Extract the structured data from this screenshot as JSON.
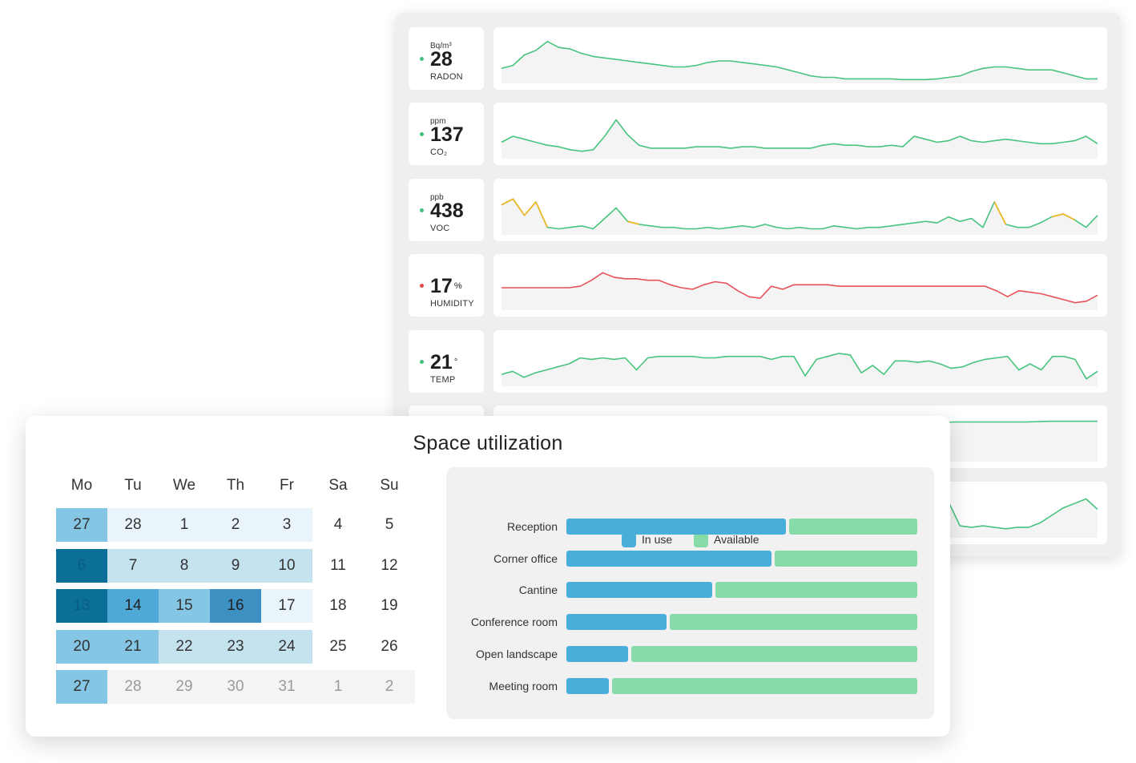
{
  "sensors": [
    {
      "unit": "Bq/m³",
      "value": "28",
      "value_sup": "",
      "label": "RADON",
      "dot_color": "#3ec27a",
      "line_color": "#48c47f",
      "series": [
        20,
        24,
        38,
        44,
        56,
        48,
        46,
        40,
        36,
        34,
        32,
        30,
        28,
        26,
        24,
        22,
        22,
        24,
        28,
        30,
        30,
        28,
        26,
        24,
        22,
        18,
        14,
        10,
        8,
        8,
        6,
        6,
        6,
        6,
        6,
        5,
        5,
        5,
        6,
        8,
        10,
        16,
        20,
        22,
        22,
        20,
        18,
        18,
        18,
        14,
        10,
        6,
        6
      ]
    },
    {
      "unit": "ppm",
      "value": "137",
      "value_sup": "",
      "label": "CO₂",
      "dot_color": "#3ec27a",
      "line_color": "#48c47f",
      "series": [
        22,
        30,
        26,
        22,
        18,
        16,
        12,
        10,
        12,
        30,
        52,
        32,
        18,
        14,
        14,
        14,
        14,
        16,
        16,
        16,
        14,
        16,
        16,
        14,
        14,
        14,
        14,
        14,
        18,
        20,
        18,
        18,
        16,
        16,
        18,
        16,
        30,
        26,
        22,
        24,
        30,
        24,
        22,
        24,
        26,
        24,
        22,
        20,
        20,
        22,
        24,
        30,
        20
      ]
    },
    {
      "unit": "ppb",
      "value": "438",
      "value_sup": "",
      "label": "VOC",
      "dot_color": "#3ec27a",
      "line_color": "#48c47f",
      "warn_color": "#f0b92c",
      "series": [
        40,
        48,
        26,
        44,
        10,
        8,
        10,
        12,
        8,
        22,
        36,
        18,
        14,
        12,
        10,
        10,
        8,
        8,
        10,
        8,
        10,
        12,
        10,
        14,
        10,
        8,
        10,
        8,
        8,
        12,
        10,
        8,
        10,
        10,
        12,
        14,
        16,
        18,
        16,
        24,
        18,
        22,
        10,
        44,
        14,
        10,
        10,
        16,
        24,
        28,
        20,
        10,
        26
      ],
      "warn": [
        0,
        1,
        2,
        3,
        11,
        43,
        48,
        49
      ]
    },
    {
      "unit": "",
      "value": "17",
      "value_sup": "%",
      "label": "HUMIDITY",
      "dot_color": "#e04a4a",
      "line_color": "#e8525b",
      "series": [
        30,
        30,
        30,
        30,
        30,
        30,
        30,
        32,
        40,
        50,
        44,
        42,
        42,
        40,
        40,
        34,
        30,
        28,
        34,
        38,
        36,
        26,
        18,
        16,
        32,
        28,
        34,
        34,
        34,
        34,
        32,
        32,
        32,
        32,
        32,
        32,
        32,
        32,
        32,
        32,
        32,
        32,
        32,
        32,
        26,
        18,
        26,
        24,
        22,
        18,
        14,
        10,
        12,
        20
      ]
    },
    {
      "unit": "",
      "value": "21",
      "value_sup": "°",
      "label": "TEMP",
      "dot_color": "#3ec27a",
      "line_color": "#48c47f",
      "series": [
        16,
        20,
        12,
        18,
        22,
        26,
        30,
        38,
        36,
        38,
        36,
        38,
        22,
        38,
        40,
        40,
        40,
        40,
        38,
        38,
        40,
        40,
        40,
        40,
        36,
        40,
        40,
        14,
        36,
        40,
        44,
        42,
        18,
        28,
        16,
        34,
        34,
        32,
        34,
        30,
        24,
        26,
        32,
        36,
        38,
        40,
        22,
        30,
        22,
        40,
        40,
        36,
        10,
        20
      ]
    },
    {
      "unit": "",
      "value": "",
      "value_sup": "",
      "label": "",
      "dot_color": "#3ec27a",
      "line_color": "#48c47f",
      "series": [
        20,
        24,
        30,
        34,
        38,
        40,
        42,
        44,
        46,
        47,
        48,
        49,
        50,
        50,
        51,
        51,
        52,
        52,
        52,
        53,
        53,
        53,
        53,
        54,
        54,
        54
      ]
    },
    {
      "unit": "",
      "value": "",
      "value_sup": "",
      "label": "",
      "dot_color": "#3ec27a",
      "line_color": "#48c47f",
      "series": [
        14,
        12,
        14,
        16,
        18,
        14,
        12,
        14,
        16,
        14,
        12,
        14,
        18,
        14,
        12,
        14,
        16,
        18,
        14,
        12,
        14,
        16,
        14,
        12,
        14,
        16,
        20,
        18,
        16,
        14,
        12,
        14,
        18,
        14,
        48,
        14,
        50,
        16,
        16,
        48,
        16,
        14,
        16,
        14,
        12,
        14,
        14,
        20,
        30,
        40,
        46,
        52,
        38
      ]
    }
  ],
  "utilization": {
    "title": "Space utilization",
    "weekdays": [
      "Mo",
      "Tu",
      "We",
      "Th",
      "Fr",
      "Sa",
      "Su"
    ],
    "weeks": [
      [
        {
          "d": "27",
          "l": 2
        },
        {
          "d": "28",
          "l": 0
        },
        {
          "d": "1",
          "l": 0
        },
        {
          "d": "2",
          "l": 0
        },
        {
          "d": "3",
          "l": 0
        },
        {
          "d": "4",
          "l": -1
        },
        {
          "d": "5",
          "l": -1
        }
      ],
      [
        {
          "d": "6",
          "l": 5
        },
        {
          "d": "7",
          "l": 1
        },
        {
          "d": "8",
          "l": 1
        },
        {
          "d": "9",
          "l": 1
        },
        {
          "d": "10",
          "l": 1
        },
        {
          "d": "11",
          "l": -1
        },
        {
          "d": "12",
          "l": -1
        }
      ],
      [
        {
          "d": "13",
          "l": 5
        },
        {
          "d": "14",
          "l": 3
        },
        {
          "d": "15",
          "l": 2
        },
        {
          "d": "16",
          "l": 4
        },
        {
          "d": "17",
          "l": 0
        },
        {
          "d": "18",
          "l": -1
        },
        {
          "d": "19",
          "l": -1
        }
      ],
      [
        {
          "d": "20",
          "l": 2
        },
        {
          "d": "21",
          "l": 2
        },
        {
          "d": "22",
          "l": 1
        },
        {
          "d": "23",
          "l": 1
        },
        {
          "d": "24",
          "l": 1
        },
        {
          "d": "25",
          "l": -1
        },
        {
          "d": "26",
          "l": -1
        }
      ],
      [
        {
          "d": "27",
          "l": 2
        },
        {
          "d": "28",
          "l": -2
        },
        {
          "d": "29",
          "l": -2
        },
        {
          "d": "30",
          "l": -2
        },
        {
          "d": "31",
          "l": -2
        },
        {
          "d": "1",
          "l": -2
        },
        {
          "d": "2",
          "l": -2
        }
      ]
    ],
    "level_colors": {
      "-2": "#f2f4f5",
      "-1": "#ffffff",
      "0": "#e9f5fa",
      "1": "#c4e3ef",
      "2": "#84c6e3",
      "3": "#4ea9d6",
      "4": "#3d90c2",
      "5": "#0b6f97"
    },
    "level_text_colors": {
      "-2": "#9a9a9a",
      "-1": "#333333",
      "0": "#333333",
      "1": "#333333",
      "2": "#333333",
      "3": "#222222",
      "4": "#222222",
      "5": "#0b5c80"
    },
    "legend": {
      "in_use": "In use",
      "available": "Available"
    },
    "colors": {
      "in_use": "#4aaeda",
      "available": "#86dba9"
    },
    "rooms": [
      {
        "name": "Reception",
        "in_use": 0.63
      },
      {
        "name": "Corner office",
        "in_use": 0.59
      },
      {
        "name": "Cantine",
        "in_use": 0.42
      },
      {
        "name": "Conference room",
        "in_use": 0.29
      },
      {
        "name": "Open landscape",
        "in_use": 0.18
      },
      {
        "name": "Meeting room",
        "in_use": 0.125
      }
    ]
  }
}
